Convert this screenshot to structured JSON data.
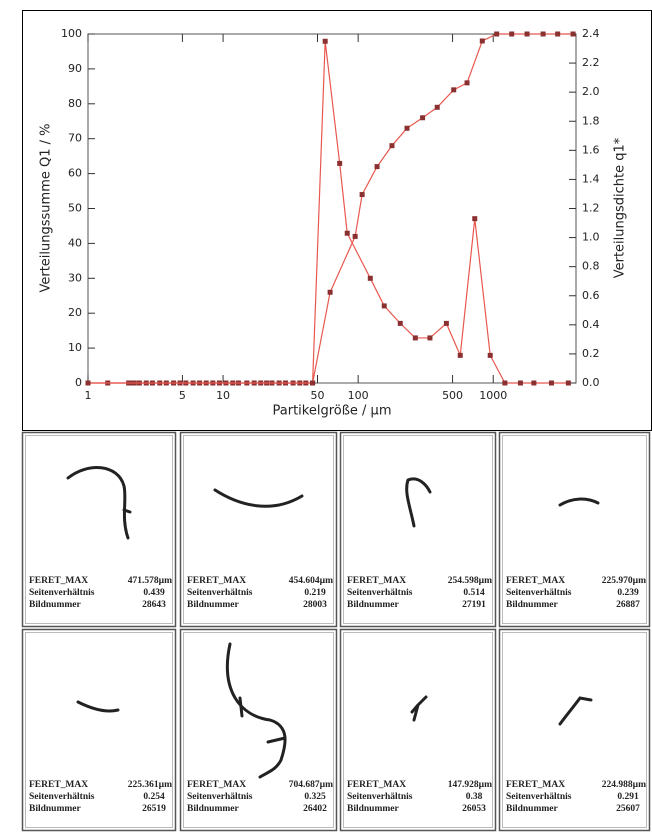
{
  "chart_data": {
    "type": "line",
    "x_label": "Partikelgröße / µm",
    "y_label": "Verteilungssumme Q1 / %",
    "y2_label": "Verteilungsdichte q1*",
    "xscale": "log",
    "xlim": [
      1,
      4100
    ],
    "xticks": [
      1,
      5,
      10,
      50,
      100,
      500,
      1000
    ],
    "ylim": [
      0,
      100
    ],
    "yticks": [
      0,
      10,
      20,
      30,
      40,
      50,
      60,
      70,
      80,
      90,
      100
    ],
    "y2lim": [
      0,
      2.4
    ],
    "y2ticks": [
      {
        "value": 0,
        "label": "0.0"
      },
      0.2,
      0.4,
      0.6,
      0.8,
      {
        "value": 1,
        "label": "1.0"
      },
      1.2,
      1.4,
      1.6,
      1.8,
      {
        "value": 2,
        "label": "2.0"
      },
      2.2,
      2.4
    ],
    "line_color": "#e8584f",
    "marker_color": "#8b3030",
    "series": [
      {
        "x": [
          1,
          1.4,
          2,
          2.1,
          2.2,
          2.4,
          2.7,
          3,
          3.4,
          3.8,
          4.3,
          4.8,
          5.3,
          6,
          6.7,
          7.5,
          8.4,
          9.4,
          10.5,
          11.8,
          13,
          15,
          17,
          19,
          21,
          23,
          26,
          29,
          33,
          37,
          41,
          46,
          62,
          95,
          107,
          138,
          178,
          230,
          300,
          385,
          510,
          640,
          830,
          1060,
          1370,
          1780,
          2340,
          3000,
          3900
        ],
        "values": [
          0,
          0,
          0,
          0,
          0,
          0,
          0,
          0,
          0,
          0,
          0,
          0,
          0,
          0,
          0,
          0,
          0,
          0,
          0,
          0,
          0,
          0,
          0,
          0,
          0,
          0,
          0,
          0,
          0,
          0,
          0,
          0,
          26,
          42,
          54,
          62,
          68,
          73,
          76,
          79,
          84,
          86,
          98,
          100,
          100,
          100,
          100,
          100,
          100
        ]
      },
      {
        "axis": "y2",
        "x": [
          1,
          46,
          57,
          73,
          83,
          123,
          156,
          205,
          265,
          340,
          450,
          570,
          730,
          950,
          1220,
          1590,
          2000,
          2700,
          3600
        ],
        "values": [
          0,
          0,
          2.35,
          1.51,
          1.03,
          0.72,
          0.53,
          0.41,
          0.31,
          0.31,
          0.41,
          0.19,
          1.13,
          0.19,
          0,
          0,
          0,
          0,
          0
        ]
      }
    ]
  },
  "particles": {
    "labels": {
      "feret": "FERET_MAX",
      "ratio": "Seitenverhältnis",
      "image": "Bildnummer"
    },
    "items": [
      {
        "feret": "471.578µm",
        "ratio": 0.439,
        "image": 28643
      },
      {
        "feret": "454.604µm",
        "ratio": 0.219,
        "image": 28003
      },
      {
        "feret": "254.598µm",
        "ratio": 0.514,
        "image": 27191
      },
      {
        "feret": "225.970µm",
        "ratio": 0.239,
        "image": 26887
      },
      {
        "feret": "225.361µm",
        "ratio": 0.254,
        "image": 26519
      },
      {
        "feret": "704.687µm",
        "ratio": 0.325,
        "image": 26402
      },
      {
        "feret": "147.928µm",
        "ratio": 0.38,
        "image": 26053
      },
      {
        "feret": "224.988µm",
        "ratio": 0.291,
        "image": 25607
      }
    ]
  }
}
